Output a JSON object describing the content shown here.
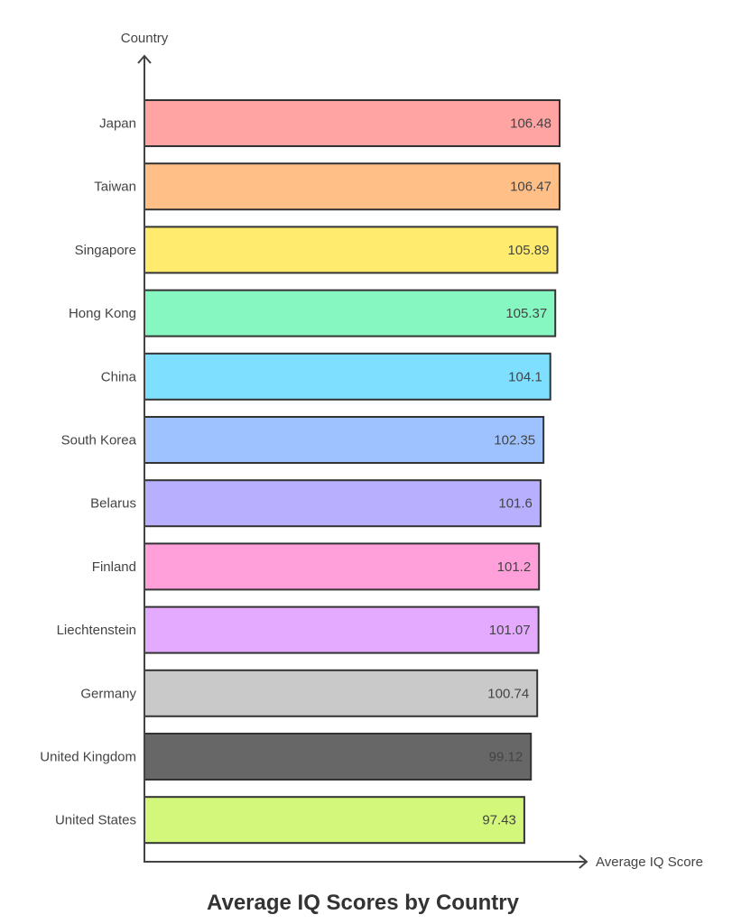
{
  "chart_data": {
    "type": "bar",
    "orientation": "horizontal",
    "title": "Average IQ Scores by Country",
    "xlabel": "Average IQ Score",
    "ylabel": "Country",
    "xlim": [
      0,
      106.48
    ],
    "grid": false,
    "categories": [
      "Japan",
      "Taiwan",
      "Singapore",
      "Hong Kong",
      "China",
      "South Korea",
      "Belarus",
      "Finland",
      "Liechtenstein",
      "Germany",
      "United Kingdom",
      "United States"
    ],
    "values": [
      106.48,
      106.47,
      105.89,
      105.37,
      104.1,
      102.35,
      101.6,
      101.2,
      101.07,
      100.74,
      99.12,
      97.43
    ],
    "value_labels": [
      "106.48",
      "106.47",
      "105.89",
      "105.37",
      "104.1",
      "102.35",
      "101.6",
      "101.2",
      "101.07",
      "100.74",
      "99.12",
      "97.43"
    ],
    "colors": [
      "#ffa3a3",
      "#ffbf87",
      "#ffec6e",
      "#86f7c0",
      "#7fdfff",
      "#9dc2ff",
      "#b8b0ff",
      "#ffa0db",
      "#e4aaff",
      "#c9c9c9",
      "#676767",
      "#d3f77a"
    ]
  }
}
